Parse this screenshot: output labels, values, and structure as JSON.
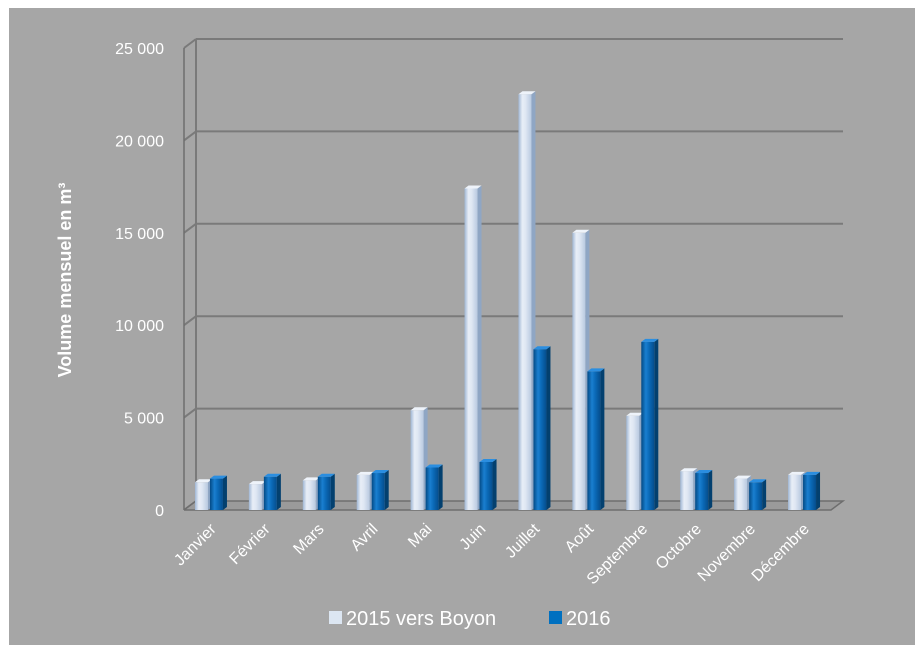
{
  "chart_data": {
    "type": "bar",
    "title": "",
    "xlabel": "",
    "ylabel": "Volume mensuel en m³",
    "ylim": [
      0,
      25000
    ],
    "yticks": [
      0,
      5000,
      10000,
      15000,
      20000,
      25000
    ],
    "ytick_labels": [
      "0",
      "5 000",
      "10 000",
      "15 000",
      "20 000",
      "25 000"
    ],
    "grid": true,
    "legend_position": "bottom",
    "categories": [
      "Janvier",
      "Février",
      "Mars",
      "Avril",
      "Mai",
      "Juin",
      "Juillet",
      "Août",
      "Septembre",
      "Octobre",
      "Novembre",
      "Décembre"
    ],
    "series": [
      {
        "name": "2015 vers Boyon",
        "color": "#dce6f2",
        "values": [
          1500,
          1400,
          1600,
          1900,
          5400,
          17400,
          22500,
          15000,
          5100,
          2100,
          1700,
          1900
        ]
      },
      {
        "name": "2016",
        "color": "#0070c0",
        "values": [
          1700,
          1800,
          1800,
          2000,
          2300,
          2600,
          8700,
          7500,
          9100,
          2000,
          1500,
          1900
        ]
      }
    ],
    "background": "#a6a6a6",
    "gridline_color": "#7a7a7a"
  }
}
